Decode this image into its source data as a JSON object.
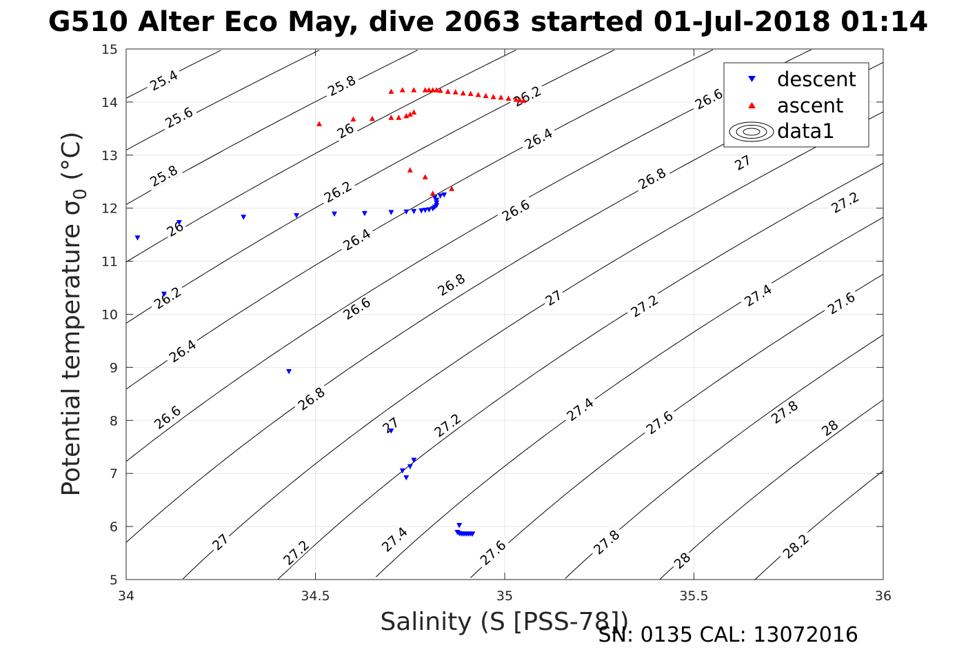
{
  "chart_data": {
    "type": "scatter",
    "title": "G510 Alter Eco May, dive 2063 started 01-Jul-2018 01:14",
    "xlabel": "Salinity (S [PSS-78])",
    "ylabel_main": "Potential temperature σ",
    "ylabel_sub": "0",
    "ylabel_unit": "(°C)",
    "xlim": [
      34,
      36
    ],
    "ylim": [
      5,
      15
    ],
    "xticks": [
      "34",
      "34.5",
      "35",
      "35.5",
      "36"
    ],
    "yticks": [
      "5",
      "6",
      "7",
      "8",
      "9",
      "10",
      "11",
      "12",
      "13",
      "14",
      "15"
    ],
    "grid": true,
    "legend_position": "top-right",
    "footer": "SN: 0135  CAL: 13072016",
    "series": [
      {
        "name": "descent",
        "color": "#0000ff",
        "marker": "triangle-down",
        "points": [
          [
            34.03,
            11.44
          ],
          [
            34.14,
            11.73
          ],
          [
            34.1,
            10.38
          ],
          [
            34.31,
            11.83
          ],
          [
            34.45,
            11.86
          ],
          [
            34.55,
            11.89
          ],
          [
            34.63,
            11.9
          ],
          [
            34.7,
            11.92
          ],
          [
            34.74,
            11.93
          ],
          [
            34.76,
            11.94
          ],
          [
            34.78,
            11.95
          ],
          [
            34.79,
            11.96
          ],
          [
            34.8,
            11.97
          ],
          [
            34.81,
            11.99
          ],
          [
            34.815,
            12.02
          ],
          [
            34.82,
            12.05
          ],
          [
            34.82,
            12.1
          ],
          [
            34.82,
            12.15
          ],
          [
            34.815,
            12.2
          ],
          [
            34.83,
            12.23
          ],
          [
            34.84,
            12.25
          ],
          [
            34.43,
            8.92
          ],
          [
            34.7,
            7.8
          ],
          [
            34.73,
            7.05
          ],
          [
            34.74,
            6.92
          ],
          [
            34.75,
            7.13
          ],
          [
            34.76,
            7.25
          ],
          [
            34.88,
            6.02
          ],
          [
            34.875,
            5.89
          ],
          [
            34.88,
            5.87
          ],
          [
            34.885,
            5.86
          ],
          [
            34.89,
            5.86
          ],
          [
            34.895,
            5.86
          ],
          [
            34.9,
            5.86
          ],
          [
            34.905,
            5.86
          ],
          [
            34.91,
            5.86
          ],
          [
            34.915,
            5.86
          ]
        ]
      },
      {
        "name": "ascent",
        "color": "#ff0000",
        "marker": "triangle-up",
        "points": [
          [
            34.51,
            13.59
          ],
          [
            34.6,
            13.68
          ],
          [
            34.65,
            13.69
          ],
          [
            34.7,
            13.71
          ],
          [
            34.72,
            13.71
          ],
          [
            34.74,
            13.74
          ],
          [
            34.75,
            13.77
          ],
          [
            34.76,
            13.81
          ],
          [
            34.7,
            14.2
          ],
          [
            34.73,
            14.23
          ],
          [
            34.76,
            14.23
          ],
          [
            34.79,
            14.23
          ],
          [
            34.8,
            14.23
          ],
          [
            34.81,
            14.23
          ],
          [
            34.82,
            14.23
          ],
          [
            34.83,
            14.22
          ],
          [
            34.85,
            14.2
          ],
          [
            34.87,
            14.19
          ],
          [
            34.89,
            14.17
          ],
          [
            34.91,
            14.16
          ],
          [
            34.93,
            14.14
          ],
          [
            34.95,
            14.12
          ],
          [
            34.97,
            14.1
          ],
          [
            34.99,
            14.09
          ],
          [
            35.01,
            14.07
          ],
          [
            35.03,
            14.05
          ],
          [
            35.04,
            14.04
          ],
          [
            35.05,
            14.03
          ],
          [
            34.75,
            12.72
          ],
          [
            34.79,
            12.59
          ],
          [
            34.81,
            12.28
          ],
          [
            34.86,
            12.37
          ]
        ]
      },
      {
        "name": "data1",
        "type": "contour",
        "color": "#000000",
        "levels": [
          25.4,
          25.6,
          25.8,
          26,
          26.2,
          26.4,
          26.6,
          26.8,
          27,
          27.2,
          27.4,
          27.6,
          27.8,
          28,
          28.2
        ]
      }
    ],
    "contour_labels": [
      {
        "text": "25.4",
        "s": 34.1,
        "t": 14.4
      },
      {
        "text": "25.6",
        "s": 34.14,
        "t": 13.7
      },
      {
        "text": "25.8",
        "s": 34.1,
        "t": 12.6
      },
      {
        "text": "26",
        "s": 34.13,
        "t": 11.6
      },
      {
        "text": "26.2",
        "s": 34.11,
        "t": 10.3
      },
      {
        "text": "26.4",
        "s": 34.15,
        "t": 9.3
      },
      {
        "text": "26.6",
        "s": 34.11,
        "t": 8.05
      },
      {
        "text": "25.8",
        "s": 34.57,
        "t": 14.3
      },
      {
        "text": "26",
        "s": 34.58,
        "t": 13.45
      },
      {
        "text": "26.2",
        "s": 34.56,
        "t": 12.3
      },
      {
        "text": "26.4",
        "s": 34.61,
        "t": 11.4
      },
      {
        "text": "26.6",
        "s": 34.61,
        "t": 10.1
      },
      {
        "text": "26.8",
        "s": 34.49,
        "t": 8.4
      },
      {
        "text": "27",
        "s": 34.7,
        "t": 7.9
      },
      {
        "text": "27",
        "s": 34.25,
        "t": 5.7
      },
      {
        "text": "27.2",
        "s": 34.45,
        "t": 5.5
      },
      {
        "text": "27.4",
        "s": 34.71,
        "t": 5.75
      },
      {
        "text": "27.6",
        "s": 34.97,
        "t": 5.5
      },
      {
        "text": "27.2",
        "s": 34.85,
        "t": 7.9
      },
      {
        "text": "26.8",
        "s": 34.86,
        "t": 10.55
      },
      {
        "text": "26.6",
        "s": 35.03,
        "t": 11.95
      },
      {
        "text": "26.4",
        "s": 35.09,
        "t": 13.3
      },
      {
        "text": "26.2",
        "s": 35.06,
        "t": 14.1
      },
      {
        "text": "27",
        "s": 35.13,
        "t": 10.3
      },
      {
        "text": "27.4",
        "s": 35.2,
        "t": 8.2
      },
      {
        "text": "27.8",
        "s": 35.27,
        "t": 5.7
      },
      {
        "text": "26.8",
        "s": 35.39,
        "t": 12.55
      },
      {
        "text": "27.2",
        "s": 35.37,
        "t": 10.15
      },
      {
        "text": "27.6",
        "s": 35.41,
        "t": 7.95
      },
      {
        "text": "28",
        "s": 35.47,
        "t": 5.35
      },
      {
        "text": "26.6",
        "s": 35.54,
        "t": 14.05
      },
      {
        "text": "27",
        "s": 35.63,
        "t": 12.85
      },
      {
        "text": "27.4",
        "s": 35.67,
        "t": 10.35
      },
      {
        "text": "27.8",
        "s": 35.74,
        "t": 8.15
      },
      {
        "text": "28.2",
        "s": 35.77,
        "t": 5.62
      },
      {
        "text": "27.2",
        "s": 35.9,
        "t": 12.1
      },
      {
        "text": "27.6",
        "s": 35.89,
        "t": 10.2
      },
      {
        "text": "28",
        "s": 35.86,
        "t": 7.85
      }
    ]
  }
}
